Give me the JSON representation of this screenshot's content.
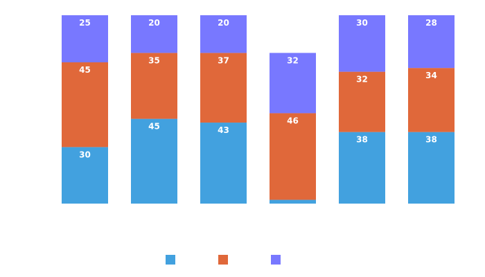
{
  "chart_data": {
    "type": "bar",
    "stacked": true,
    "categories": [
      "",
      "",
      "",
      "",
      "",
      ""
    ],
    "series": [
      {
        "color": "#42a1df",
        "values": [
          30,
          45,
          43,
          2,
          38,
          38
        ]
      },
      {
        "color": "#e0683a",
        "values": [
          45,
          35,
          37,
          46,
          32,
          34
        ]
      },
      {
        "color": "#7878ff",
        "values": [
          25,
          20,
          20,
          32,
          30,
          28
        ]
      }
    ],
    "data_labels": true,
    "legend": "bottom-center",
    "grid": false
  }
}
